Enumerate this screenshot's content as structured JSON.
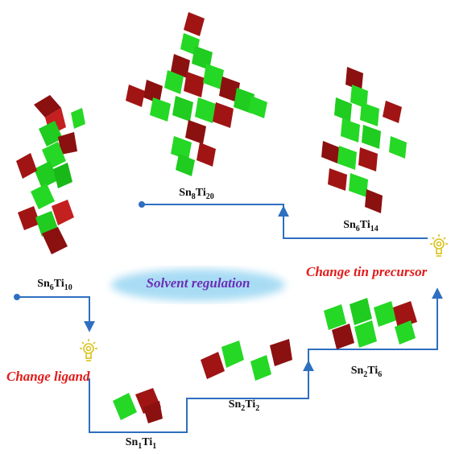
{
  "clusters": [
    {
      "id": "sn6ti10",
      "label_parts": [
        [
          "Sn",
          "6"
        ],
        [
          "Ti",
          "10"
        ]
      ]
    },
    {
      "id": "sn8ti20",
      "label_parts": [
        [
          "Sn",
          "8"
        ],
        [
          "Ti",
          "20"
        ]
      ]
    },
    {
      "id": "sn6ti14",
      "label_parts": [
        [
          "Sn",
          "6"
        ],
        [
          "Ti",
          "14"
        ]
      ]
    },
    {
      "id": "sn1ti1",
      "label_parts": [
        [
          "Sn",
          "1"
        ],
        [
          "Ti",
          "1"
        ]
      ]
    },
    {
      "id": "sn2ti2",
      "label_parts": [
        [
          "Sn",
          "2"
        ],
        [
          "Ti",
          "2"
        ]
      ]
    },
    {
      "id": "sn2ti6",
      "label_parts": [
        [
          "Sn",
          "2"
        ],
        [
          "Ti",
          "6"
        ]
      ]
    }
  ],
  "annotations": {
    "solvent": "Solvent regulation",
    "ligand": "Change ligand",
    "tin": "Change tin precursor"
  },
  "colors": {
    "arrow": "#2e6fc0",
    "ti_polyhedron": "#22cc22",
    "sn_polyhedron": "#b01818",
    "note_red": "#e21b1b",
    "solvent_text": "#6a2fb6",
    "cloud": "#a8dcf4",
    "bulb": "#d9c21a"
  }
}
